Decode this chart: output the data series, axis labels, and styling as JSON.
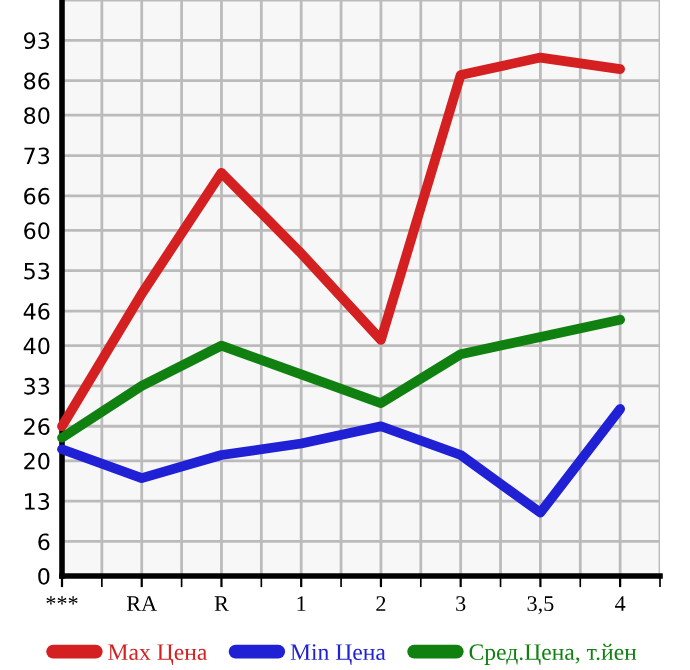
{
  "chart_data": {
    "type": "line",
    "categories": [
      "***",
      "RA",
      "R",
      "1",
      "2",
      "3",
      "3,5",
      "4"
    ],
    "series": [
      {
        "name": "Max Цена",
        "color": "#d42020",
        "values": [
          26,
          49,
          70,
          56,
          41,
          87,
          90,
          88
        ]
      },
      {
        "name": "Min Цена",
        "color": "#2020d4",
        "values": [
          22,
          17,
          21,
          23,
          26,
          21,
          11,
          29
        ]
      },
      {
        "name": "Сред.Цена, т.йен",
        "color": "#108010",
        "values": [
          24,
          33,
          40,
          35,
          30,
          38.5,
          41.5,
          44.5
        ]
      }
    ],
    "ylim": [
      0,
      100
    ],
    "yticks": [
      0,
      6,
      13,
      20,
      26,
      33,
      40,
      46,
      53,
      60,
      66,
      73,
      80,
      86,
      93,
      {
        "value": 100,
        "label": null
      }
    ],
    "grid": true,
    "legend": "bottom",
    "marker": "none",
    "line_style": "solid"
  }
}
